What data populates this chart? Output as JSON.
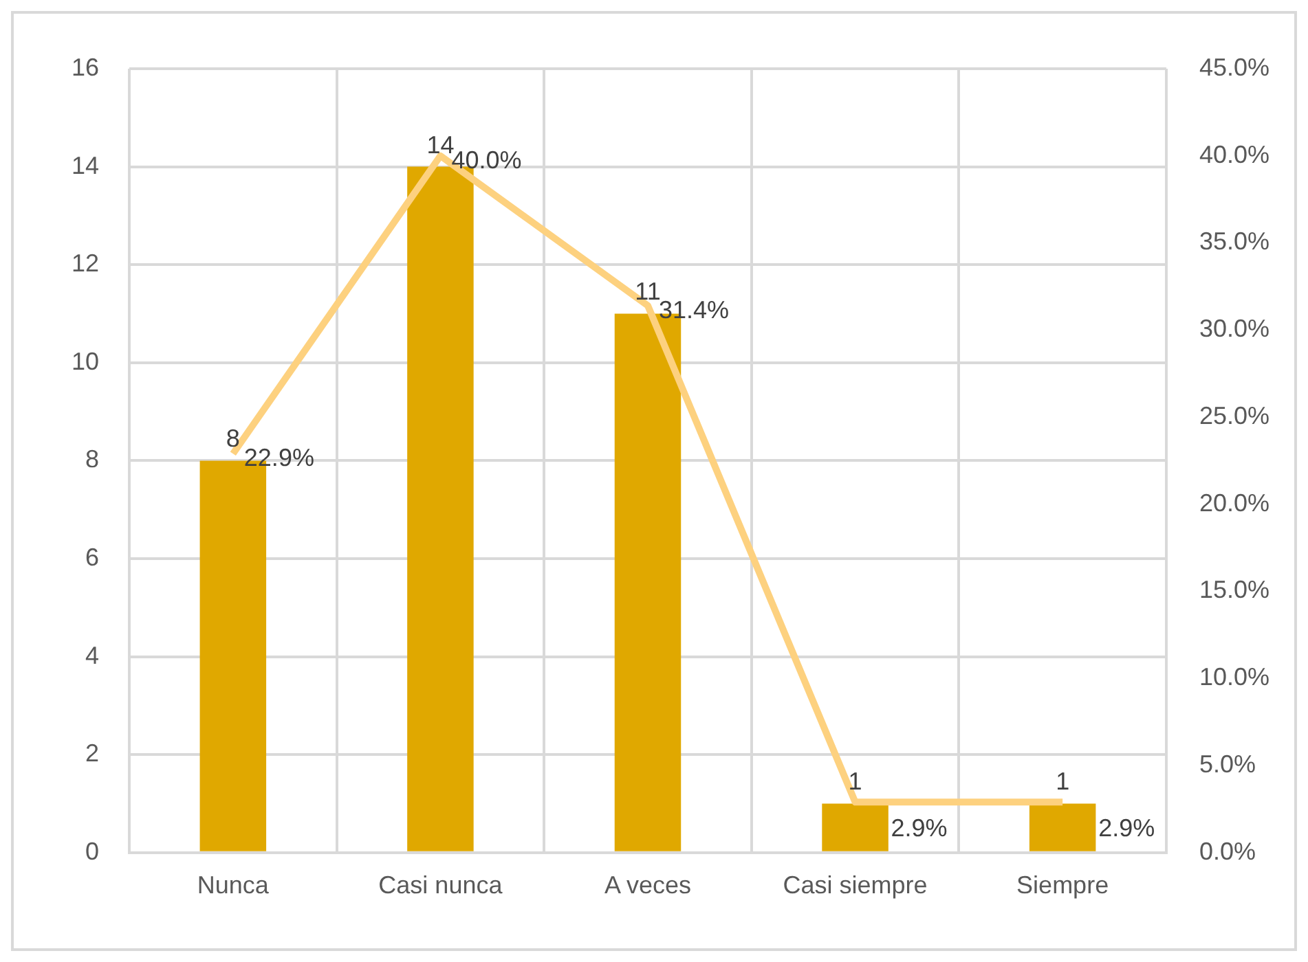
{
  "chart_data": {
    "type": "bar",
    "categories": [
      "Nunca",
      "Casi nunca",
      "A veces",
      "Casi siempre",
      "Siempre"
    ],
    "series": [
      {
        "color": "#e0a800",
        "values": [
          8,
          14,
          11,
          1,
          1
        ],
        "value_labels": [
          "8",
          "14",
          "11",
          "1",
          "1"
        ]
      },
      {
        "type": "line",
        "axis": "y2",
        "color": "#fdd17f",
        "values": [
          22.9,
          40.0,
          31.4,
          2.9,
          2.9
        ],
        "value_labels": [
          "22.9%",
          "40.0%",
          "31.4%",
          "2.9%",
          "2.9%"
        ]
      }
    ],
    "ylim": [
      0,
      16
    ],
    "yticks": [
      0,
      2,
      4,
      6,
      8,
      10,
      12,
      14,
      16
    ],
    "y2lim": [
      0,
      45
    ],
    "y2ticks": [
      {
        "value": 0,
        "label": "0.0%"
      },
      {
        "value": 5,
        "label": "5.0%"
      },
      {
        "value": 10,
        "label": "10.0%"
      },
      {
        "value": 15,
        "label": "15.0%"
      },
      {
        "value": 20,
        "label": "20.0%"
      },
      {
        "value": 25,
        "label": "25.0%"
      },
      {
        "value": 30,
        "label": "30.0%"
      },
      {
        "value": 35,
        "label": "35.0%"
      },
      {
        "value": 40,
        "label": "40.0%"
      },
      {
        "value": 45,
        "label": "45.0%"
      }
    ],
    "grid": true,
    "legend": false,
    "marker": "none"
  }
}
